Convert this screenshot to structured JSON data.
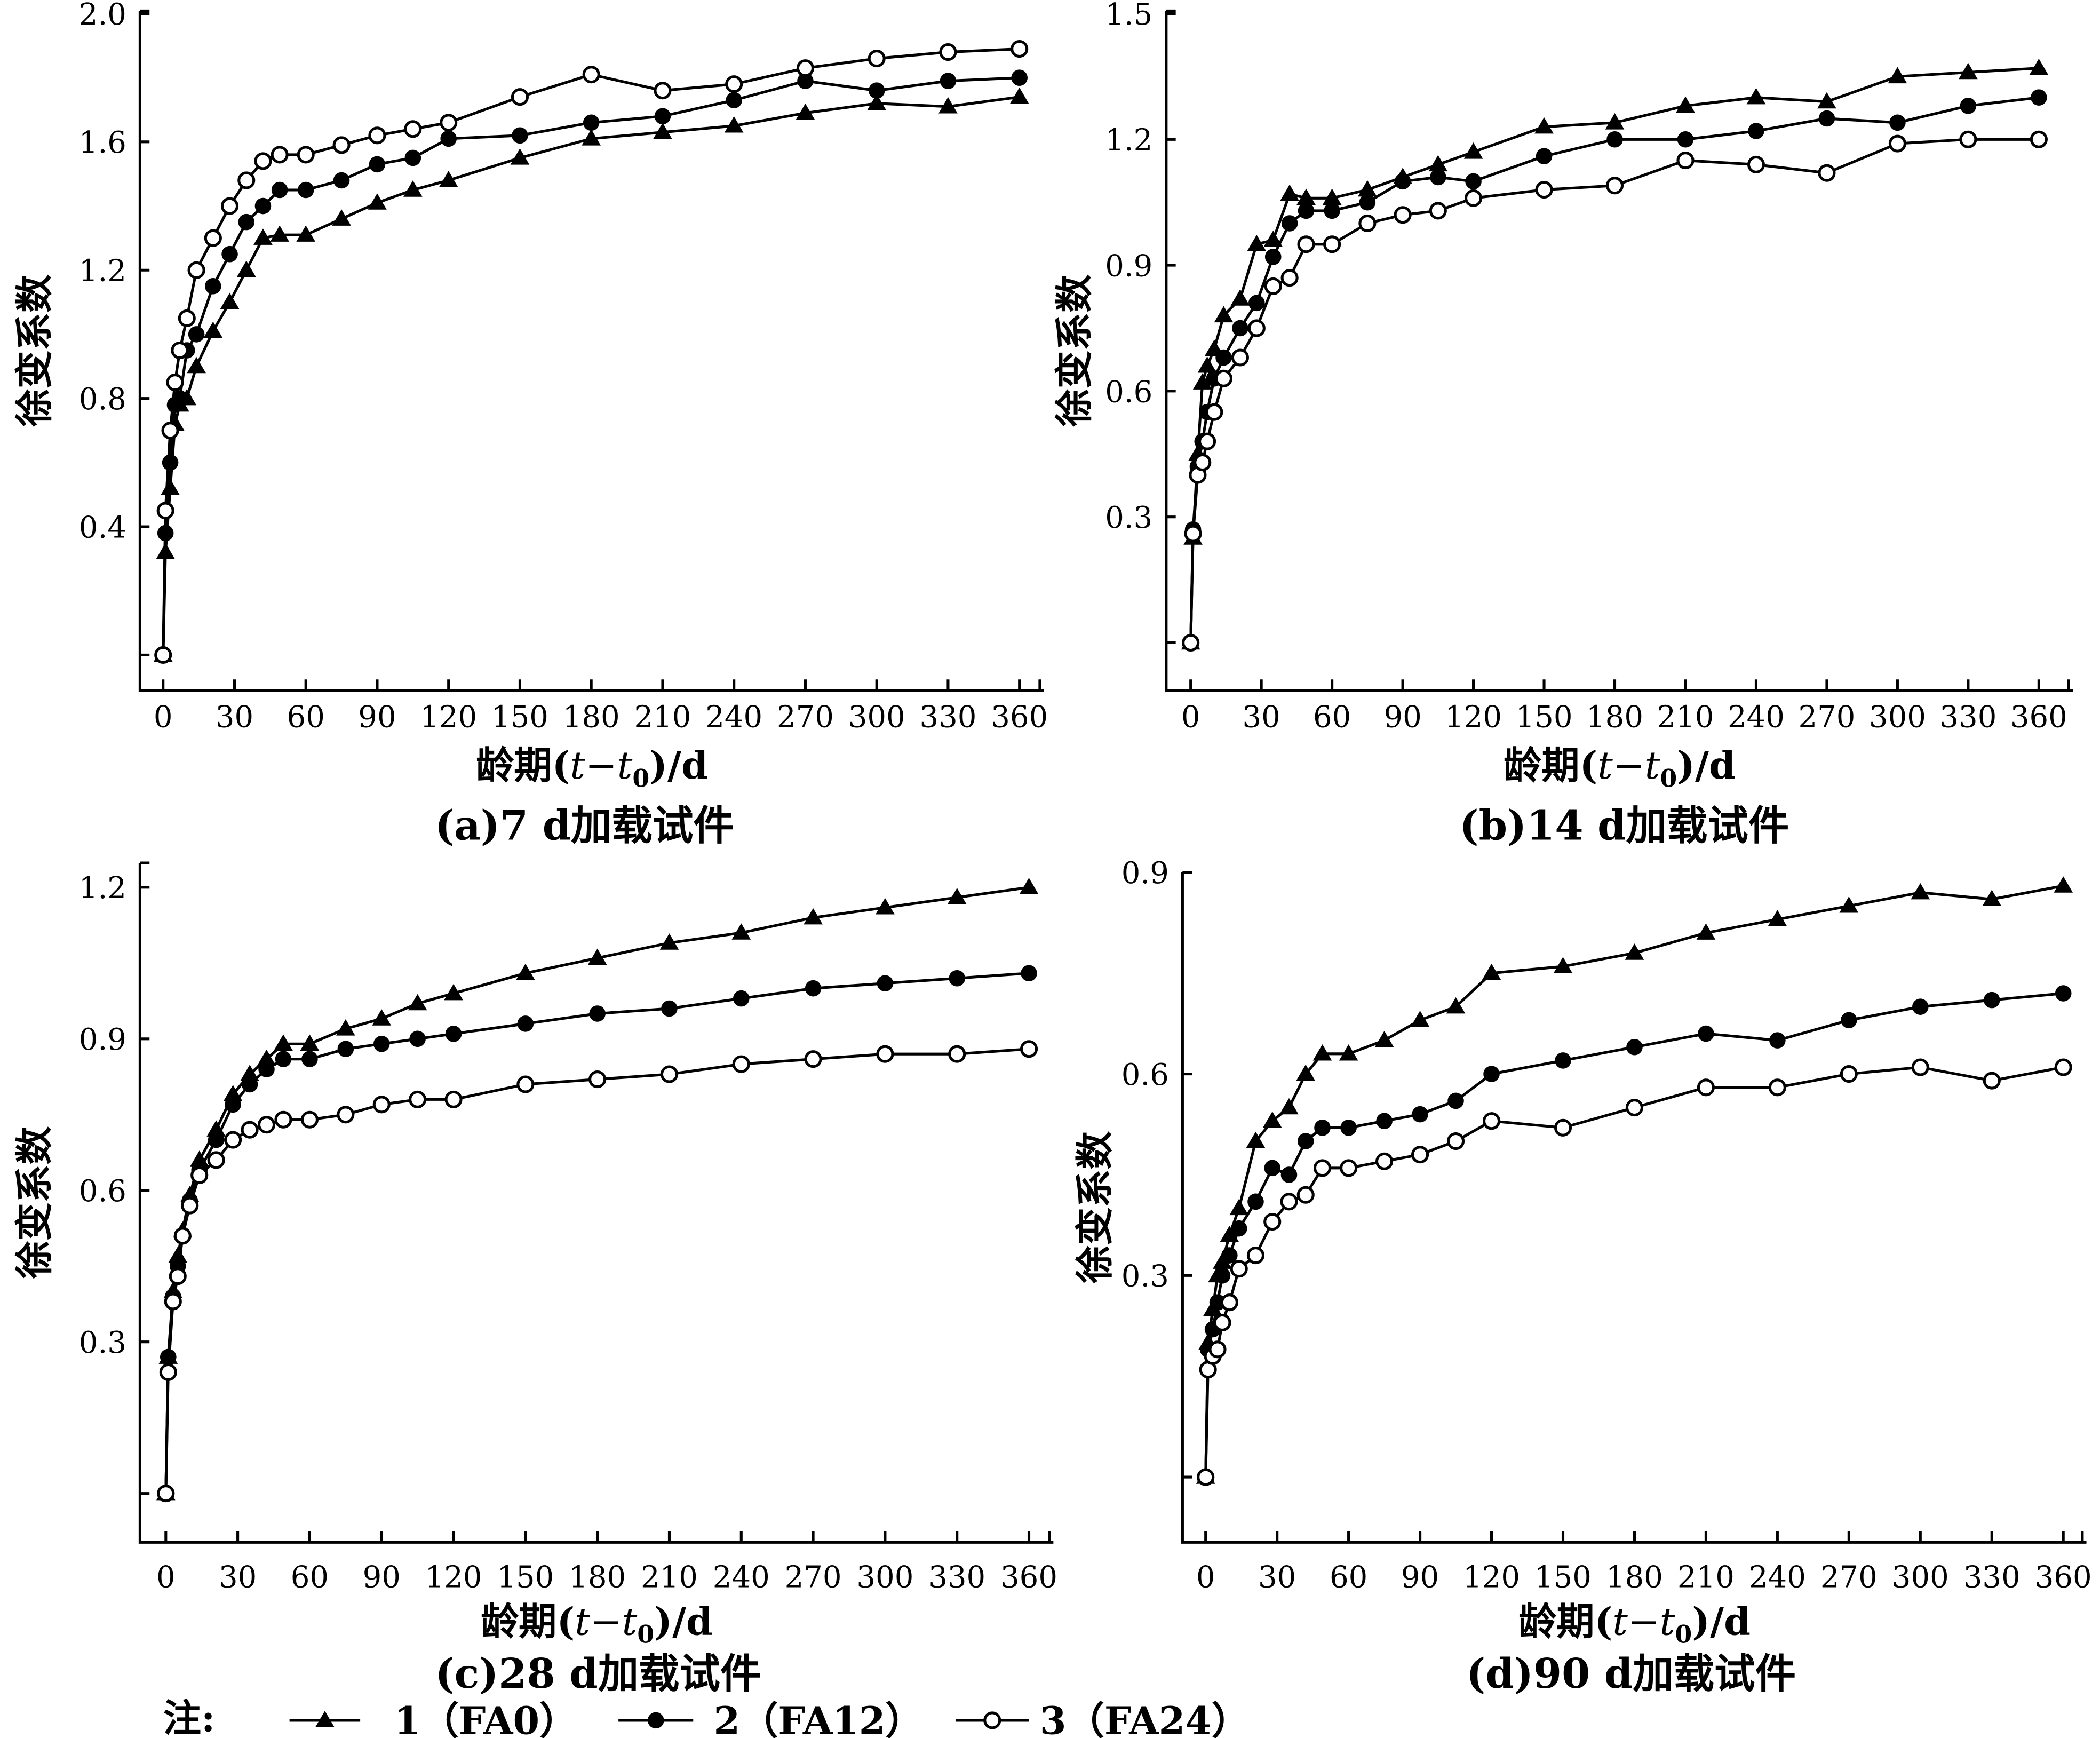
{
  "legend": {
    "note": "注:",
    "items": [
      {
        "label": "1（FA0）",
        "marker": "filled-triangle"
      },
      {
        "label": "2（FA12）",
        "marker": "filled-circle"
      },
      {
        "label": "3（FA24）",
        "marker": "open-circle"
      }
    ]
  },
  "chart_data": [
    {
      "type": "line",
      "caption": "(a)7 d加载试件",
      "xlabel": {
        "prefix": "龄期(",
        "var": "t−t",
        "sub": "0",
        "suffix": ")/d"
      },
      "ylabel": "徐变系数",
      "xticks": [
        0,
        30,
        60,
        90,
        120,
        150,
        180,
        210,
        240,
        270,
        300,
        330,
        360
      ],
      "yticks": [
        0.4,
        0.8,
        1.2,
        1.6,
        2.0
      ],
      "ylim": [
        0,
        2.0
      ],
      "xlim": [
        0,
        360
      ],
      "x": [
        0,
        1,
        3,
        5,
        7,
        10,
        14,
        21,
        28,
        35,
        42,
        49,
        60,
        75,
        90,
        105,
        120,
        150,
        180,
        210,
        240,
        270,
        300,
        330,
        360
      ],
      "series": [
        {
          "name": "1（FA0）",
          "values": [
            0,
            0.32,
            0.52,
            0.72,
            0.78,
            0.8,
            0.9,
            1.01,
            1.1,
            1.2,
            1.3,
            1.31,
            1.31,
            1.36,
            1.41,
            1.45,
            1.48,
            1.55,
            1.61,
            1.63,
            1.65,
            1.69,
            1.72,
            1.71,
            1.74
          ]
        },
        {
          "name": "2（FA12）",
          "values": [
            0,
            0.38,
            0.6,
            0.78,
            0.8,
            0.95,
            1.0,
            1.15,
            1.25,
            1.35,
            1.4,
            1.45,
            1.45,
            1.48,
            1.53,
            1.55,
            1.61,
            1.62,
            1.66,
            1.68,
            1.73,
            1.79,
            1.76,
            1.79,
            1.8
          ]
        },
        {
          "name": "3（FA24）",
          "values": [
            0,
            0.45,
            0.7,
            0.85,
            0.95,
            1.05,
            1.2,
            1.3,
            1.4,
            1.48,
            1.54,
            1.56,
            1.56,
            1.59,
            1.62,
            1.64,
            1.66,
            1.74,
            1.81,
            1.76,
            1.78,
            1.83,
            1.86,
            1.88,
            1.89
          ]
        }
      ]
    },
    {
      "type": "line",
      "caption": "(b)14 d加载试件",
      "xlabel": {
        "prefix": "龄期(",
        "var": "t−t",
        "sub": "0",
        "suffix": ")/d"
      },
      "ylabel": "徐变系数",
      "xticks": [
        0,
        30,
        60,
        90,
        120,
        150,
        180,
        210,
        240,
        270,
        300,
        330,
        360
      ],
      "yticks": [
        0.3,
        0.6,
        0.9,
        1.2,
        1.5
      ],
      "ylim": [
        0,
        1.5
      ],
      "xlim": [
        0,
        360
      ],
      "x": [
        0,
        1,
        3,
        5,
        7,
        10,
        14,
        21,
        28,
        35,
        42,
        49,
        60,
        75,
        90,
        105,
        120,
        150,
        180,
        210,
        240,
        270,
        300,
        330,
        360
      ],
      "series": [
        {
          "name": "1（FA0）",
          "values": [
            0,
            0.25,
            0.45,
            0.62,
            0.66,
            0.7,
            0.78,
            0.82,
            0.95,
            0.96,
            1.07,
            1.06,
            1.06,
            1.08,
            1.11,
            1.14,
            1.17,
            1.23,
            1.24,
            1.28,
            1.3,
            1.29,
            1.35,
            1.36,
            1.37
          ]
        },
        {
          "name": "2（FA12）",
          "values": [
            0,
            0.27,
            0.42,
            0.48,
            0.55,
            0.63,
            0.68,
            0.75,
            0.81,
            0.92,
            1.0,
            1.03,
            1.03,
            1.05,
            1.1,
            1.11,
            1.1,
            1.16,
            1.2,
            1.2,
            1.22,
            1.25,
            1.24,
            1.28,
            1.3
          ]
        },
        {
          "name": "3（FA24）",
          "values": [
            0,
            0.26,
            0.4,
            0.43,
            0.48,
            0.55,
            0.63,
            0.68,
            0.75,
            0.85,
            0.87,
            0.95,
            0.95,
            1.0,
            1.02,
            1.03,
            1.06,
            1.08,
            1.09,
            1.15,
            1.14,
            1.12,
            1.19,
            1.2,
            1.2
          ]
        }
      ]
    },
    {
      "type": "line",
      "caption": "(c)28 d加载试件",
      "xlabel": {
        "prefix": "龄期(",
        "var": "t−t",
        "sub": "0",
        "suffix": ")/d"
      },
      "ylabel": "徐变系数",
      "xticks": [
        0,
        30,
        60,
        90,
        120,
        150,
        180,
        210,
        240,
        270,
        300,
        330,
        360
      ],
      "yticks": [
        0.3,
        0.6,
        0.9,
        1.2
      ],
      "ylim": [
        0,
        1.2
      ],
      "xlim": [
        0,
        360
      ],
      "x": [
        0,
        1,
        3,
        5,
        7,
        10,
        14,
        21,
        28,
        35,
        42,
        49,
        60,
        75,
        90,
        105,
        120,
        150,
        180,
        210,
        240,
        270,
        300,
        330,
        360
      ],
      "series": [
        {
          "name": "1（FA0）",
          "values": [
            0,
            0.27,
            0.4,
            0.47,
            0.52,
            0.59,
            0.66,
            0.72,
            0.79,
            0.83,
            0.86,
            0.89,
            0.89,
            0.92,
            0.94,
            0.97,
            0.99,
            1.03,
            1.06,
            1.09,
            1.11,
            1.14,
            1.16,
            1.18,
            1.2
          ]
        },
        {
          "name": "2（FA12）",
          "values": [
            0,
            0.27,
            0.39,
            0.45,
            0.51,
            0.58,
            0.64,
            0.7,
            0.77,
            0.81,
            0.84,
            0.86,
            0.86,
            0.88,
            0.89,
            0.9,
            0.91,
            0.93,
            0.95,
            0.96,
            0.98,
            1.0,
            1.01,
            1.02,
            1.03
          ]
        },
        {
          "name": "3（FA24）",
          "values": [
            0,
            0.24,
            0.38,
            0.43,
            0.51,
            0.57,
            0.63,
            0.66,
            0.7,
            0.72,
            0.73,
            0.74,
            0.74,
            0.75,
            0.77,
            0.78,
            0.78,
            0.81,
            0.82,
            0.83,
            0.85,
            0.86,
            0.87,
            0.87,
            0.88
          ]
        }
      ]
    },
    {
      "type": "line",
      "caption": "(d)90 d加载试件",
      "xlabel": {
        "prefix": "龄期(",
        "var": "t−t",
        "sub": "0",
        "suffix": ")/d"
      },
      "ylabel": "徐变系数",
      "xticks": [
        0,
        30,
        60,
        90,
        120,
        150,
        180,
        210,
        240,
        270,
        300,
        330,
        360
      ],
      "yticks": [
        0.3,
        0.6,
        0.9
      ],
      "ylim": [
        0,
        0.9
      ],
      "xlim": [
        0,
        360
      ],
      "x": [
        0,
        1,
        3,
        5,
        7,
        10,
        14,
        21,
        28,
        35,
        42,
        49,
        60,
        75,
        90,
        105,
        120,
        150,
        180,
        210,
        240,
        270,
        300,
        330,
        360
      ],
      "series": [
        {
          "name": "1（FA0）",
          "values": [
            0,
            0.2,
            0.25,
            0.3,
            0.32,
            0.36,
            0.4,
            0.5,
            0.53,
            0.55,
            0.6,
            0.63,
            0.63,
            0.65,
            0.68,
            0.7,
            0.75,
            0.76,
            0.78,
            0.81,
            0.83,
            0.85,
            0.87,
            0.86,
            0.88
          ]
        },
        {
          "name": "2（FA12）",
          "values": [
            0,
            0.19,
            0.22,
            0.26,
            0.3,
            0.33,
            0.37,
            0.41,
            0.46,
            0.45,
            0.5,
            0.52,
            0.52,
            0.53,
            0.54,
            0.56,
            0.6,
            0.62,
            0.64,
            0.66,
            0.65,
            0.68,
            0.7,
            0.71,
            0.72
          ]
        },
        {
          "name": "3（FA24）",
          "values": [
            0,
            0.16,
            0.18,
            0.19,
            0.23,
            0.26,
            0.31,
            0.33,
            0.38,
            0.41,
            0.42,
            0.46,
            0.46,
            0.47,
            0.48,
            0.5,
            0.53,
            0.52,
            0.55,
            0.58,
            0.58,
            0.6,
            0.61,
            0.59,
            0.61
          ]
        }
      ]
    }
  ]
}
